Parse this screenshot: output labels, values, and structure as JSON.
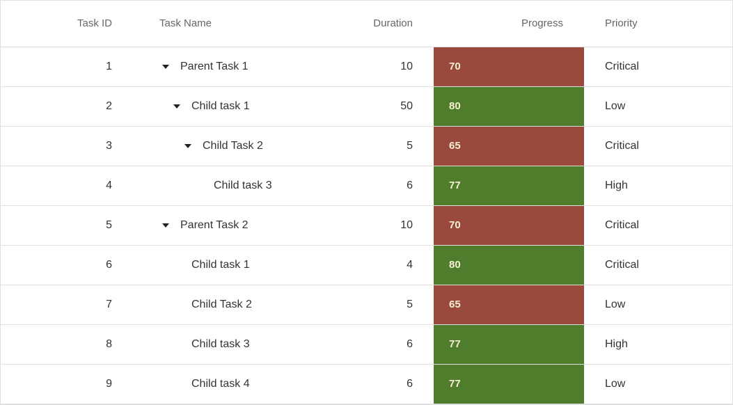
{
  "colors": {
    "progress_low": "#9a4a3c",
    "progress_high": "#4f7d2c",
    "progress_text": "#f7eed6",
    "border": "#e0e0e0",
    "header_text": "#666666",
    "body_text": "#333333"
  },
  "table": {
    "columns": [
      {
        "key": "task_id",
        "label": "Task ID"
      },
      {
        "key": "task_name",
        "label": "Task Name"
      },
      {
        "key": "duration",
        "label": "Duration"
      },
      {
        "key": "progress",
        "label": "Progress"
      },
      {
        "key": "priority",
        "label": "Priority"
      }
    ],
    "rows": [
      {
        "task_id": "1",
        "task_name": "Parent Task 1",
        "level": 0,
        "expandable": true,
        "duration": "10",
        "progress": "70",
        "progress_color": "low",
        "priority": "Critical"
      },
      {
        "task_id": "2",
        "task_name": "Child task 1",
        "level": 1,
        "expandable": true,
        "duration": "50",
        "progress": "80",
        "progress_color": "high",
        "priority": "Low"
      },
      {
        "task_id": "3",
        "task_name": "Child Task 2",
        "level": 2,
        "expandable": true,
        "duration": "5",
        "progress": "65",
        "progress_color": "low",
        "priority": "Critical"
      },
      {
        "task_id": "4",
        "task_name": "Child task 3",
        "level": 3,
        "expandable": false,
        "duration": "6",
        "progress": "77",
        "progress_color": "high",
        "priority": "High"
      },
      {
        "task_id": "5",
        "task_name": "Parent Task 2",
        "level": 0,
        "expandable": true,
        "duration": "10",
        "progress": "70",
        "progress_color": "low",
        "priority": "Critical"
      },
      {
        "task_id": "6",
        "task_name": "Child task 1",
        "level": 1,
        "expandable": false,
        "duration": "4",
        "progress": "80",
        "progress_color": "high",
        "priority": "Critical"
      },
      {
        "task_id": "7",
        "task_name": "Child Task 2",
        "level": 1,
        "expandable": false,
        "duration": "5",
        "progress": "65",
        "progress_color": "low",
        "priority": "Low"
      },
      {
        "task_id": "8",
        "task_name": "Child task 3",
        "level": 1,
        "expandable": false,
        "duration": "6",
        "progress": "77",
        "progress_color": "high",
        "priority": "High"
      },
      {
        "task_id": "9",
        "task_name": "Child task 4",
        "level": 1,
        "expandable": false,
        "duration": "6",
        "progress": "77",
        "progress_color": "high",
        "priority": "Low"
      }
    ]
  }
}
